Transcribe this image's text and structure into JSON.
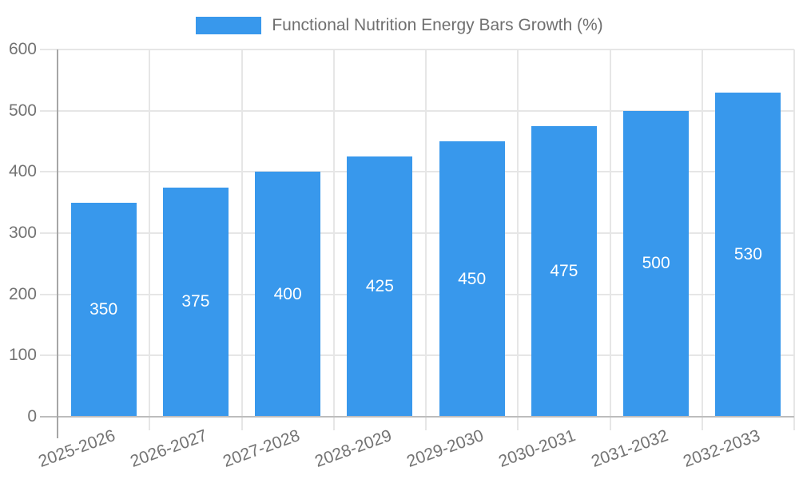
{
  "legend": {
    "label": "Functional Nutrition Energy Bars Growth (%)"
  },
  "chart_data": {
    "type": "bar",
    "title": "Functional Nutrition Energy Bars Growth (%)",
    "categories": [
      "2025-2026",
      "2026-2027",
      "2027-2028",
      "2028-2029",
      "2029-2030",
      "2030-2031",
      "2031-2032",
      "2032-2033"
    ],
    "values": [
      350,
      375,
      400,
      425,
      450,
      475,
      500,
      530
    ],
    "value_labels": [
      "350",
      "375",
      "400",
      "425",
      "450",
      "475",
      "500",
      "530"
    ],
    "xlabel": "",
    "ylabel": "",
    "ylim": [
      0,
      600
    ],
    "yticks": [
      0,
      100,
      200,
      300,
      400,
      500,
      600
    ],
    "grid": true,
    "legend_position": "top-center",
    "x_label_rotation_deg": -20,
    "colors": {
      "bar": "#3898ec",
      "value_label": "#ffffff",
      "grid": "#e6e6e6",
      "x_axis_line": "#bdbdbd",
      "y_axis_line": "#a6a6a6",
      "tick_label": "#737373",
      "legend_text": "#6f6f6f",
      "background": "#ffffff"
    }
  }
}
